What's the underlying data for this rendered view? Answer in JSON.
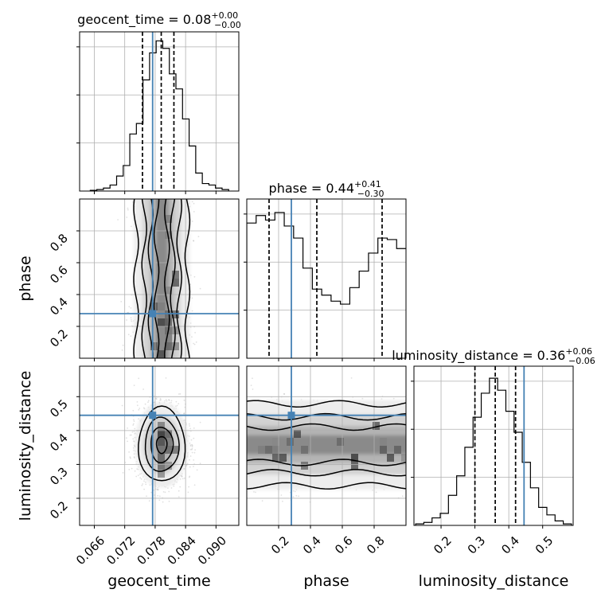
{
  "chart_data": {
    "type": "corner",
    "parameters": [
      "geocent_time",
      "phase",
      "luminosity_distance"
    ],
    "ranges": {
      "geocent_time": [
        0.0631,
        0.0945
      ],
      "phase": [
        0.0,
        1.0
      ],
      "luminosity_distance": [
        0.12,
        0.59
      ]
    },
    "ticks": {
      "geocent_time": [
        "0.066",
        "0.072",
        "0.078",
        "0.084",
        "0.090"
      ],
      "phase": [
        "0.2",
        "0.4",
        "0.6",
        "0.8"
      ],
      "luminosity_distance": [
        "0.2",
        "0.3",
        "0.4",
        "0.5"
      ]
    },
    "truths": {
      "geocent_time": 0.0775,
      "phase": 0.28,
      "luminosity_distance": 0.445
    },
    "truth_color": "#4682b4",
    "titles": [
      {
        "param": "geocent_time",
        "label": "geocent_time = 0.08",
        "sup": "+0.00",
        "sub": "−0.00"
      },
      {
        "param": "phase",
        "label": "phase = 0.44",
        "sup": "+0.41",
        "sub": "−0.30"
      },
      {
        "param": "luminosity_distance",
        "label": "luminosity_distance = 0.36",
        "sup": "+0.06",
        "sub": "−0.06"
      }
    ],
    "quantiles": {
      "geocent_time": [
        0.0755,
        0.0792,
        0.0817
      ],
      "phase": [
        0.14,
        0.44,
        0.85
      ],
      "luminosity_distance": [
        0.3,
        0.36,
        0.42
      ]
    },
    "histograms": {
      "geocent_time": [
        0.005,
        0.01,
        0.02,
        0.04,
        0.1,
        0.17,
        0.38,
        0.45,
        0.74,
        0.92,
        1.0,
        0.95,
        0.78,
        0.68,
        0.48,
        0.3,
        0.12,
        0.05,
        0.04,
        0.02,
        0.01
      ],
      "phase": [
        0.9,
        0.95,
        0.92,
        0.97,
        0.88,
        0.8,
        0.6,
        0.46,
        0.42,
        0.38,
        0.36,
        0.47,
        0.58,
        0.7,
        0.8,
        0.79,
        0.73
      ],
      "luminosity_distance": [
        0.01,
        0.02,
        0.05,
        0.08,
        0.2,
        0.33,
        0.52,
        0.72,
        0.88,
        0.98,
        0.9,
        0.76,
        0.62,
        0.42,
        0.25,
        0.12,
        0.07,
        0.03,
        0.01
      ]
    },
    "posterior": {
      "geocent_time": {
        "mean": 0.0793,
        "sd": 0.0023
      },
      "luminosity_distance": {
        "mean": 0.358,
        "sd": 0.055
      }
    },
    "grid": true
  }
}
